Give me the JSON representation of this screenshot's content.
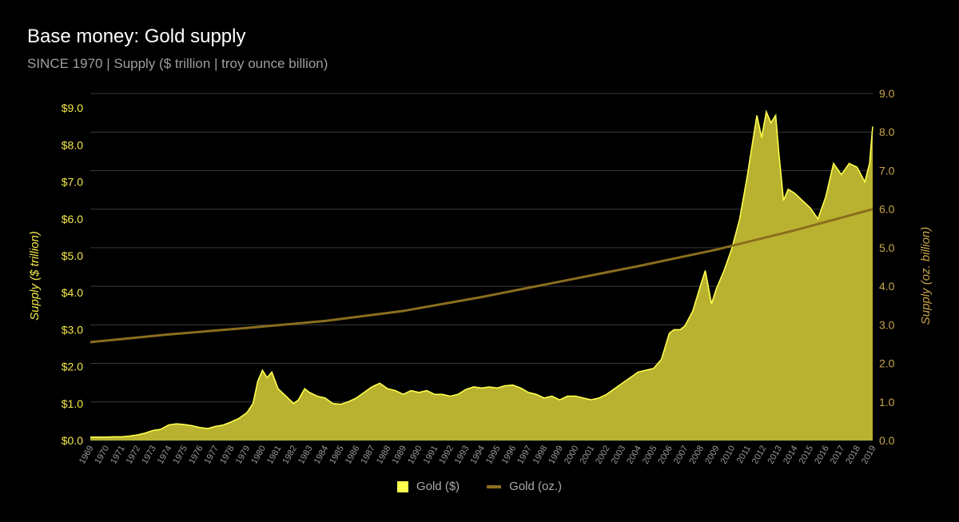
{
  "header": {
    "title": "Base money: Gold supply",
    "subtitle": "SINCE 1970 | Supply ($ trillion | troy ounce billion)"
  },
  "legend": {
    "items": [
      "Gold ($)",
      "Gold (oz.)"
    ]
  },
  "colors": {
    "area_fill": "#b8b230",
    "area_line": "#ffff4d",
    "oz_line": "#8b6d1e",
    "left_axis_text": "#f4e84a",
    "right_axis_text": "#c9a64a",
    "grid": "#3a3a3a",
    "year_text": "#9a9a9a"
  },
  "chart_data": {
    "type": "area",
    "xlabel": "",
    "ylabel_left": "Supply ($ trillion)",
    "ylabel_right": "Supply (oz. billion)",
    "x_categories": [
      "1969",
      "1970",
      "1971",
      "1972",
      "1973",
      "1974",
      "1975",
      "1976",
      "1977",
      "1978",
      "1979",
      "1980",
      "1981",
      "1982",
      "1983",
      "1984",
      "1985",
      "1986",
      "1987",
      "1988",
      "1989",
      "1990",
      "1991",
      "1992",
      "1993",
      "1994",
      "1995",
      "1996",
      "1997",
      "1998",
      "1999",
      "2000",
      "2001",
      "2002",
      "2003",
      "2004",
      "2005",
      "2006",
      "2007",
      "2008",
      "2009",
      "2010",
      "2011",
      "2012",
      "2013",
      "2014",
      "2015",
      "2016",
      "2017",
      "2018",
      "2019"
    ],
    "y_left_range": [
      0,
      9
    ],
    "y_left_ticks": [
      "$0.0",
      "$1.0",
      "$2.0",
      "$3.0",
      "$4.0",
      "$5.0",
      "$6.0",
      "$7.0",
      "$8.0",
      "$9.0"
    ],
    "y_right_range": [
      0,
      9
    ],
    "y_right_ticks": [
      "0.0",
      "1.0",
      "2.0",
      "3.0",
      "4.0",
      "5.0",
      "6.0",
      "7.0",
      "8.0",
      "9.0"
    ],
    "grid": true,
    "legend_position": "bottom",
    "series": [
      {
        "name": "Gold ($)",
        "axis": "left",
        "points": [
          [
            1969.0,
            0.09
          ],
          [
            1970.0,
            0.09
          ],
          [
            1970.5,
            0.1
          ],
          [
            1971.0,
            0.1
          ],
          [
            1971.5,
            0.12
          ],
          [
            1972.0,
            0.15
          ],
          [
            1972.5,
            0.2
          ],
          [
            1973.0,
            0.27
          ],
          [
            1973.5,
            0.3
          ],
          [
            1974.0,
            0.42
          ],
          [
            1974.5,
            0.45
          ],
          [
            1975.0,
            0.43
          ],
          [
            1975.5,
            0.4
          ],
          [
            1976.0,
            0.35
          ],
          [
            1976.5,
            0.32
          ],
          [
            1977.0,
            0.38
          ],
          [
            1977.5,
            0.42
          ],
          [
            1978.0,
            0.5
          ],
          [
            1978.5,
            0.6
          ],
          [
            1979.0,
            0.75
          ],
          [
            1979.4,
            1.0
          ],
          [
            1979.7,
            1.6
          ],
          [
            1980.0,
            1.9
          ],
          [
            1980.3,
            1.7
          ],
          [
            1980.6,
            1.85
          ],
          [
            1981.0,
            1.4
          ],
          [
            1981.5,
            1.2
          ],
          [
            1982.0,
            1.0
          ],
          [
            1982.3,
            1.1
          ],
          [
            1982.7,
            1.4
          ],
          [
            1983.0,
            1.3
          ],
          [
            1983.5,
            1.2
          ],
          [
            1984.0,
            1.15
          ],
          [
            1984.5,
            1.0
          ],
          [
            1985.0,
            0.98
          ],
          [
            1985.5,
            1.05
          ],
          [
            1986.0,
            1.15
          ],
          [
            1986.5,
            1.3
          ],
          [
            1987.0,
            1.45
          ],
          [
            1987.5,
            1.55
          ],
          [
            1988.0,
            1.4
          ],
          [
            1988.5,
            1.35
          ],
          [
            1989.0,
            1.25
          ],
          [
            1989.5,
            1.35
          ],
          [
            1990.0,
            1.3
          ],
          [
            1990.5,
            1.35
          ],
          [
            1991.0,
            1.25
          ],
          [
            1991.5,
            1.25
          ],
          [
            1992.0,
            1.2
          ],
          [
            1992.5,
            1.25
          ],
          [
            1993.0,
            1.38
          ],
          [
            1993.5,
            1.45
          ],
          [
            1994.0,
            1.42
          ],
          [
            1994.5,
            1.45
          ],
          [
            1995.0,
            1.42
          ],
          [
            1995.5,
            1.48
          ],
          [
            1996.0,
            1.5
          ],
          [
            1996.5,
            1.42
          ],
          [
            1997.0,
            1.3
          ],
          [
            1997.5,
            1.25
          ],
          [
            1998.0,
            1.15
          ],
          [
            1998.5,
            1.2
          ],
          [
            1999.0,
            1.1
          ],
          [
            1999.5,
            1.2
          ],
          [
            2000.0,
            1.2
          ],
          [
            2000.5,
            1.15
          ],
          [
            2001.0,
            1.1
          ],
          [
            2001.5,
            1.15
          ],
          [
            2002.0,
            1.25
          ],
          [
            2002.5,
            1.4
          ],
          [
            2003.0,
            1.55
          ],
          [
            2003.5,
            1.7
          ],
          [
            2004.0,
            1.85
          ],
          [
            2004.5,
            1.9
          ],
          [
            2005.0,
            1.95
          ],
          [
            2005.5,
            2.2
          ],
          [
            2006.0,
            2.9
          ],
          [
            2006.3,
            3.0
          ],
          [
            2006.7,
            3.0
          ],
          [
            2007.0,
            3.1
          ],
          [
            2007.5,
            3.5
          ],
          [
            2008.0,
            4.2
          ],
          [
            2008.3,
            4.6
          ],
          [
            2008.7,
            3.7
          ],
          [
            2009.0,
            4.1
          ],
          [
            2009.5,
            4.6
          ],
          [
            2010.0,
            5.2
          ],
          [
            2010.5,
            6.0
          ],
          [
            2011.0,
            7.2
          ],
          [
            2011.3,
            8.0
          ],
          [
            2011.6,
            8.8
          ],
          [
            2011.9,
            8.2
          ],
          [
            2012.2,
            8.9
          ],
          [
            2012.5,
            8.6
          ],
          [
            2012.8,
            8.8
          ],
          [
            2013.0,
            7.8
          ],
          [
            2013.3,
            6.5
          ],
          [
            2013.6,
            6.8
          ],
          [
            2014.0,
            6.7
          ],
          [
            2014.5,
            6.5
          ],
          [
            2015.0,
            6.3
          ],
          [
            2015.5,
            6.0
          ],
          [
            2016.0,
            6.6
          ],
          [
            2016.5,
            7.5
          ],
          [
            2017.0,
            7.2
          ],
          [
            2017.5,
            7.5
          ],
          [
            2018.0,
            7.4
          ],
          [
            2018.5,
            7.0
          ],
          [
            2018.8,
            7.5
          ],
          [
            2019.0,
            8.5
          ]
        ]
      },
      {
        "name": "Gold (oz.)",
        "axis": "right",
        "points": [
          [
            1969,
            2.55
          ],
          [
            1974,
            2.75
          ],
          [
            1979,
            2.92
          ],
          [
            1984,
            3.1
          ],
          [
            1989,
            3.36
          ],
          [
            1994,
            3.72
          ],
          [
            1999,
            4.12
          ],
          [
            2004,
            4.52
          ],
          [
            2009,
            4.95
          ],
          [
            2014,
            5.45
          ],
          [
            2019,
            6.0
          ]
        ]
      }
    ]
  }
}
